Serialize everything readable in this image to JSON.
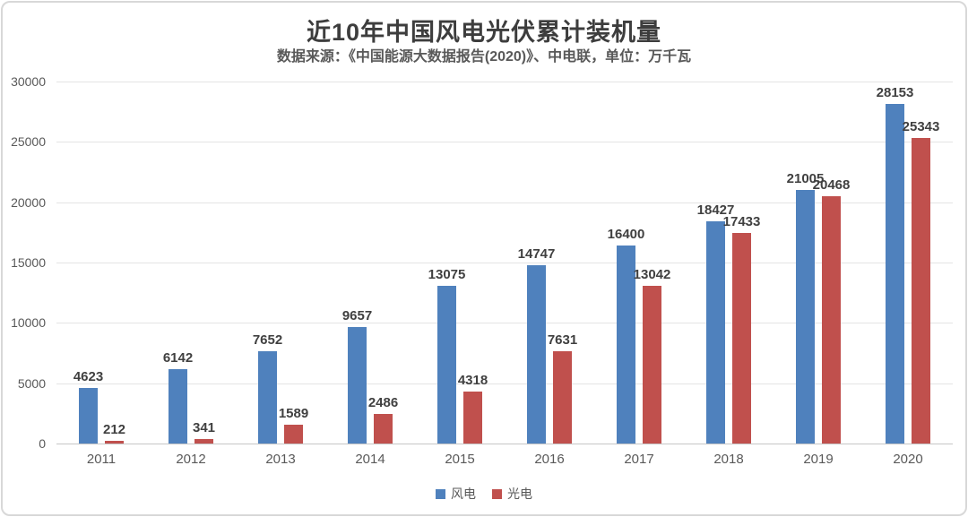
{
  "header": {
    "title": "近10年中国风电光伏累计装机量",
    "subtitle": "数据来源：《中国能源大数据报告(2020)》、中电联，单位：万千瓦"
  },
  "chart_data": {
    "type": "bar",
    "title": "近10年中国风电光伏累计装机量",
    "subtitle": "数据来源：《中国能源大数据报告(2020)》、中电联，单位：万千瓦",
    "unit": "万千瓦",
    "categories": [
      "2011",
      "2012",
      "2013",
      "2014",
      "2015",
      "2016",
      "2017",
      "2018",
      "2019",
      "2020"
    ],
    "series": [
      {
        "name": "风电",
        "color": "#4F81BD",
        "values": [
          4623,
          6142,
          7652,
          9657,
          13075,
          14747,
          16400,
          18427,
          21005,
          28153
        ]
      },
      {
        "name": "光电",
        "color": "#C0504D",
        "values": [
          212,
          341,
          1589,
          2486,
          4318,
          7631,
          13042,
          17433,
          20468,
          25343
        ]
      }
    ],
    "ylim": [
      0,
      30000
    ],
    "yticks": [
      0,
      5000,
      10000,
      15000,
      20000,
      25000,
      30000
    ],
    "grid": true,
    "legend_position": "bottom",
    "data_labels": true
  },
  "style_colors": {
    "wind_blue": "#4F81BD",
    "solar_red": "#C0504D",
    "gridline": "#E4E4E4",
    "axis_line": "#C6C6C6",
    "tick_text": "#595959",
    "title_text": "#3D3D3D",
    "value_label_text": "#404040",
    "card_border": "#D8D8D8",
    "background": "#FFFFFF"
  }
}
